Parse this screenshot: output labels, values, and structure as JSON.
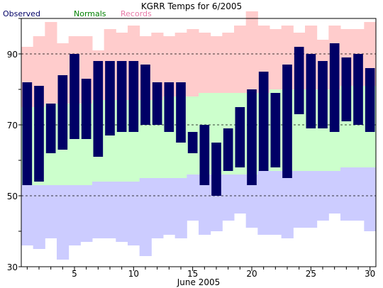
{
  "chart_data": {
    "type": "bar",
    "title": "KGRR Temps for 6/2005",
    "xlabel": "June 2005",
    "ylabel": "",
    "xlim": [
      1,
      30
    ],
    "ylim": [
      30,
      100
    ],
    "x_ticks": [
      5,
      10,
      15,
      20,
      25,
      30
    ],
    "y_ticks": [
      30,
      50,
      70,
      90
    ],
    "dashed_gridlines": [
      50,
      70,
      90
    ],
    "legend_position": "top-left",
    "legend": [
      {
        "label": "Observed",
        "color": "#000066"
      },
      {
        "label": "Normals",
        "color": "#008000"
      },
      {
        "label": "Records",
        "color": "#e87aa8"
      }
    ],
    "colors": {
      "observed": "#000066",
      "normals": "#ccffcc",
      "record_high_band": "#ffcccc",
      "record_low_band": "#ccccff"
    },
    "days": [
      1,
      2,
      3,
      4,
      5,
      6,
      7,
      8,
      9,
      10,
      11,
      12,
      13,
      14,
      15,
      16,
      17,
      18,
      19,
      20,
      21,
      22,
      23,
      24,
      25,
      26,
      27,
      28,
      29,
      30
    ],
    "series": [
      {
        "name": "Records",
        "key": "record_high",
        "values": [
          92,
          95,
          99,
          93,
          95,
          95,
          91,
          97,
          96,
          98,
          95,
          96,
          95,
          96,
          97,
          96,
          95,
          96,
          98,
          102,
          98,
          97,
          98,
          96,
          98,
          94,
          98,
          97,
          97,
          99
        ]
      },
      {
        "name": "Normals",
        "key": "normal_high",
        "values": [
          75,
          75,
          76,
          76,
          76,
          76,
          77,
          77,
          77,
          77,
          77,
          77,
          78,
          78,
          78,
          79,
          79,
          79,
          79,
          79,
          79,
          80,
          80,
          80,
          80,
          80,
          80,
          81,
          81,
          81
        ]
      },
      {
        "name": "Normals",
        "key": "normal_low",
        "values": [
          53,
          53,
          53,
          53,
          53,
          53,
          54,
          54,
          54,
          54,
          55,
          55,
          55,
          55,
          56,
          56,
          56,
          56,
          56,
          56,
          57,
          57,
          57,
          57,
          57,
          57,
          57,
          58,
          58,
          58
        ]
      },
      {
        "name": "Records",
        "key": "record_low",
        "values": [
          36,
          35,
          38,
          32,
          36,
          37,
          38,
          38,
          37,
          36,
          33,
          38,
          39,
          38,
          43,
          39,
          40,
          43,
          45,
          41,
          39,
          39,
          38,
          41,
          41,
          43,
          45,
          43,
          43,
          40
        ]
      },
      {
        "name": "Observed",
        "key": "observed_high",
        "values": [
          82,
          81,
          76,
          84,
          90,
          83,
          88,
          88,
          88,
          88,
          87,
          82,
          82,
          82,
          68,
          70,
          65,
          69,
          75,
          80,
          85,
          79,
          87,
          92,
          90,
          88,
          93,
          89,
          90,
          86
        ]
      },
      {
        "name": "Observed",
        "key": "observed_low",
        "values": [
          53,
          54,
          62,
          63,
          66,
          66,
          61,
          67,
          68,
          68,
          70,
          70,
          68,
          65,
          62,
          53,
          50,
          57,
          58,
          53,
          57,
          58,
          55,
          73,
          69,
          69,
          68,
          71,
          70,
          68
        ]
      }
    ]
  }
}
